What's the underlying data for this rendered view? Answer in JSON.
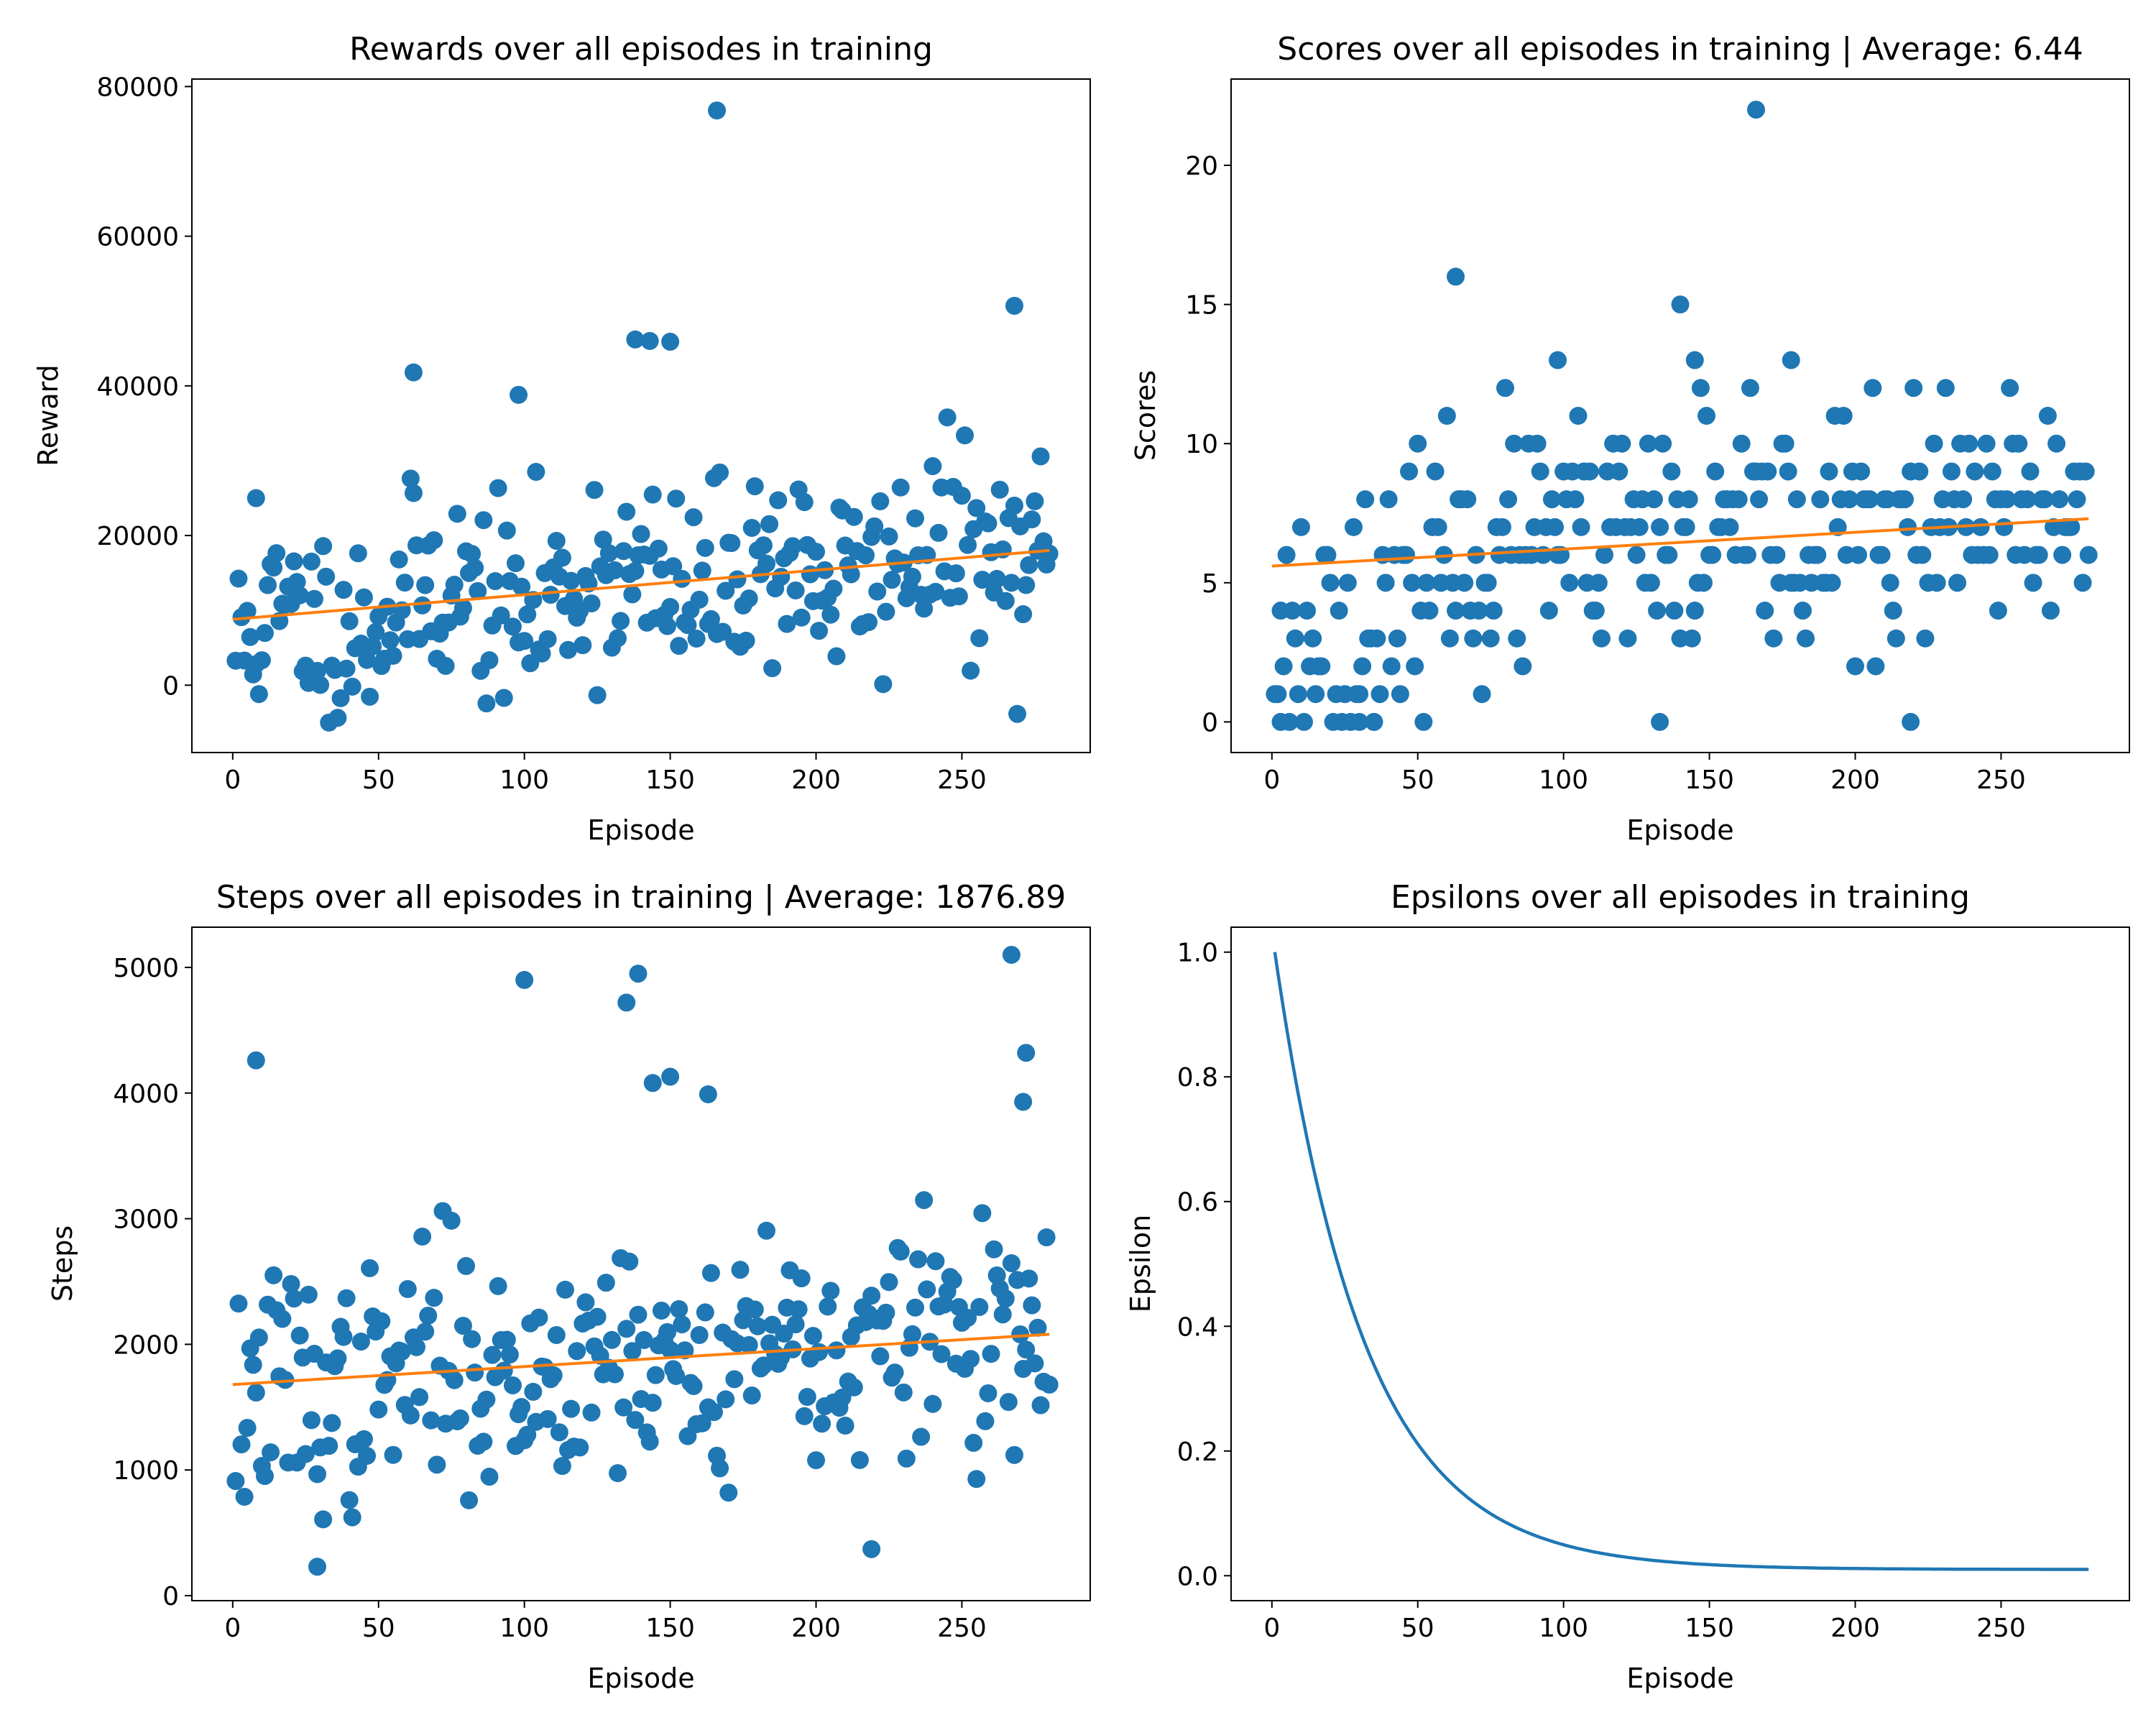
{
  "chart_data": [
    {
      "type": "scatter",
      "title": "Rewards over all episodes in training",
      "xlabel": "Episode",
      "ylabel": "Reward",
      "xlim": [
        -14,
        294
      ],
      "ylim": [
        -9000,
        81000
      ],
      "xticks": [
        0,
        50,
        100,
        150,
        200,
        250
      ],
      "yticks": [
        0,
        20000,
        40000,
        60000,
        80000
      ],
      "colors": {
        "points": "#1f77b4",
        "trend": "#ff7f0e"
      },
      "trend": {
        "x": [
          0,
          280
        ],
        "y": [
          8800,
          18000
        ]
      },
      "outliers": [
        {
          "x": 8,
          "y": 25000
        },
        {
          "x": 62,
          "y": 41800
        },
        {
          "x": 98,
          "y": 38800
        },
        {
          "x": 138,
          "y": 46200
        },
        {
          "x": 143,
          "y": 46000
        },
        {
          "x": 150,
          "y": 45900
        },
        {
          "x": 166,
          "y": 76800
        },
        {
          "x": 268,
          "y": 50700
        }
      ],
      "points": {
        "n": 280,
        "seed": 11,
        "kind": "trend",
        "base": 8800,
        "slope": 33,
        "ripple": 2500,
        "spread": 9000,
        "low": -5000,
        "high": 37000
      }
    },
    {
      "type": "scatter",
      "title": "Scores over all episodes in training | Average: 6.44",
      "xlabel": "Episode",
      "ylabel": "Scores",
      "xlim": [
        -14,
        294
      ],
      "ylim": [
        -1.1,
        23.1
      ],
      "xticks": [
        0,
        50,
        100,
        150,
        200,
        250
      ],
      "yticks": [
        0,
        5,
        10,
        15,
        20
      ],
      "colors": {
        "points": "#1f77b4",
        "trend": "#ff7f0e"
      },
      "trend": {
        "x": [
          0,
          280
        ],
        "y": [
          5.6,
          7.3
        ]
      },
      "outliers": [
        {
          "x": 63,
          "y": 16
        },
        {
          "x": 140,
          "y": 15
        },
        {
          "x": 166,
          "y": 22
        },
        {
          "x": 98,
          "y": 13
        },
        {
          "x": 145,
          "y": 13
        },
        {
          "x": 178,
          "y": 13
        },
        {
          "x": 133,
          "y": 0
        },
        {
          "x": 219,
          "y": 0
        },
        {
          "x": 30,
          "y": 0
        },
        {
          "x": 35,
          "y": 0
        },
        {
          "x": 3,
          "y": 0
        }
      ],
      "points": {
        "n": 280,
        "seed": 23,
        "kind": "score",
        "base": 5.6,
        "slope": 0.006,
        "spread": 3.2,
        "low": 0,
        "high": 12
      }
    },
    {
      "type": "scatter",
      "title": "Steps over all episodes in training | Average: 1876.89",
      "xlabel": "Episode",
      "ylabel": "Steps",
      "xlim": [
        -14,
        294
      ],
      "ylim": [
        -40,
        5320
      ],
      "xticks": [
        0,
        50,
        100,
        150,
        200,
        250
      ],
      "yticks": [
        0,
        1000,
        2000,
        3000,
        4000,
        5000
      ],
      "colors": {
        "points": "#1f77b4",
        "trend": "#ff7f0e"
      },
      "trend": {
        "x": [
          0,
          280
        ],
        "y": [
          1680,
          2080
        ]
      },
      "outliers": [
        {
          "x": 8,
          "y": 4260
        },
        {
          "x": 100,
          "y": 4900
        },
        {
          "x": 135,
          "y": 4720
        },
        {
          "x": 139,
          "y": 4950
        },
        {
          "x": 144,
          "y": 4080
        },
        {
          "x": 150,
          "y": 4130
        },
        {
          "x": 163,
          "y": 3990
        },
        {
          "x": 267,
          "y": 5100
        },
        {
          "x": 272,
          "y": 4320
        },
        {
          "x": 271,
          "y": 3930
        },
        {
          "x": 29,
          "y": 230
        },
        {
          "x": 219,
          "y": 370
        }
      ],
      "points": {
        "n": 280,
        "seed": 37,
        "kind": "trend",
        "base": 1680,
        "slope": 1.43,
        "ripple": 150,
        "spread": 620,
        "low": 250,
        "high": 3600
      }
    },
    {
      "type": "line",
      "title": "Epsilons over all episodes in training",
      "xlabel": "Episode",
      "ylabel": "Epsilon",
      "xlim": [
        -14,
        294
      ],
      "ylim": [
        -0.04,
        1.04
      ],
      "xticks": [
        0,
        50,
        100,
        150,
        200,
        250
      ],
      "yticks": [
        0.0,
        0.2,
        0.4,
        0.6,
        0.8,
        1.0
      ],
      "colors": {
        "line": "#1f77b4"
      },
      "curve": {
        "x_start": 1,
        "x_end": 280,
        "floor": 0.01,
        "start": 1.0,
        "decay": 0.0325
      }
    }
  ]
}
